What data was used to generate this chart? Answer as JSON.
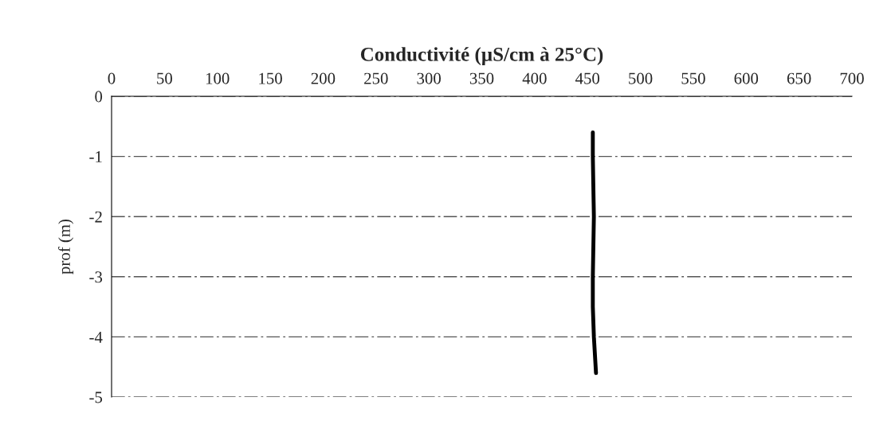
{
  "chart_data": {
    "type": "line",
    "title": "Conductivité (µS/cm à 25°C)",
    "ylabel": "prof (m)",
    "series": [
      {
        "color": "#000000",
        "x": [
          455,
          455,
          456,
          455,
          455,
          456,
          458
        ],
        "values": [
          -0.6,
          -1,
          -2,
          -3,
          -3.5,
          -4,
          -4.6
        ]
      }
    ],
    "xlim": [
      0,
      700
    ],
    "xticks": [
      0,
      50,
      100,
      150,
      200,
      250,
      300,
      350,
      400,
      450,
      500,
      550,
      600,
      650,
      700
    ],
    "ylim": [
      -5,
      0
    ],
    "yticks": [
      0,
      -1,
      -2,
      -3,
      -4,
      -5
    ],
    "grid": "y",
    "line_style": "solid",
    "marker": "none",
    "legend": false
  }
}
